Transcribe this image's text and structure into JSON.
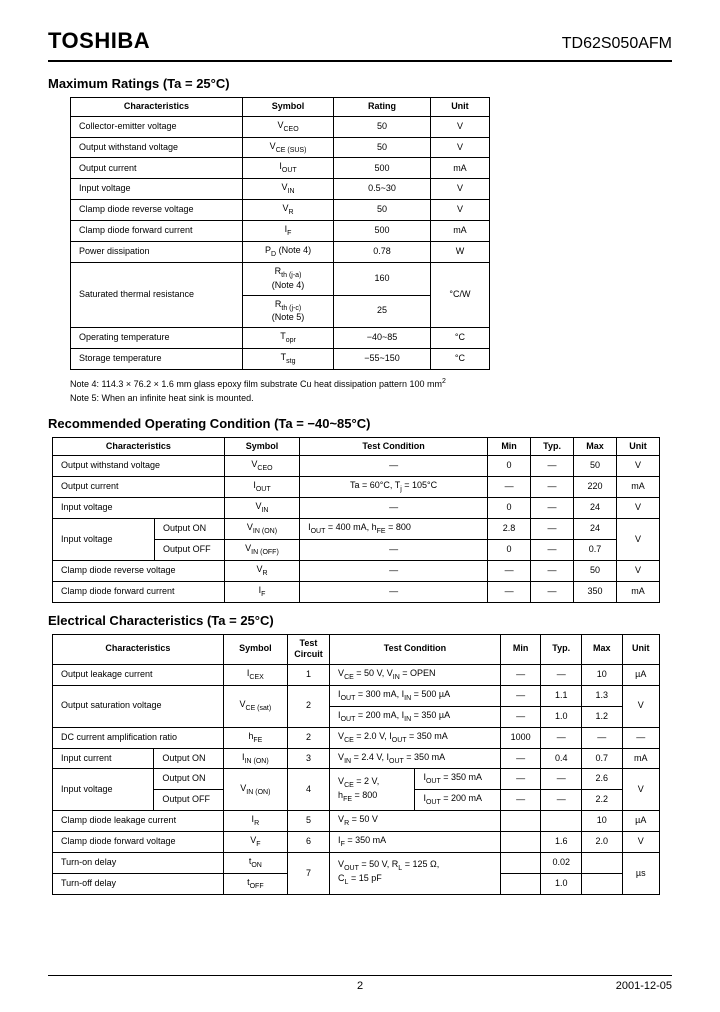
{
  "header": {
    "brand": "TOSHIBA",
    "part": "TD62S050AFM"
  },
  "footer": {
    "page": "2",
    "date": "2001-12-05"
  },
  "sec1": {
    "title": "Maximum Ratings (Ta = 25°C)",
    "headers": [
      "Characteristics",
      "Symbol",
      "Rating",
      "Unit"
    ],
    "rows": [
      {
        "c": "Collector-emitter voltage",
        "s": "V<CEO>",
        "r": "50",
        "u": "V"
      },
      {
        "c": "Output withstand voltage",
        "s": "V<CE (SUS)>",
        "r": "50",
        "u": "V"
      },
      {
        "c": "Output current",
        "s": "I<OUT>",
        "r": "500",
        "u": "mA"
      },
      {
        "c": "Input voltage",
        "s": "V<IN>",
        "r": "0.5~30",
        "u": "V"
      },
      {
        "c": "Clamp diode reverse voltage",
        "s": "V<R>",
        "r": "50",
        "u": "V"
      },
      {
        "c": "Clamp diode forward current",
        "s": "I<F>",
        "r": "500",
        "u": "mA"
      },
      {
        "c": "Power dissipation",
        "s": "P<D> (Note 4)",
        "r": "0.78",
        "u": "W"
      }
    ],
    "sat": {
      "c": "Saturated thermal resistance",
      "s1": "R<th (j-a)>\n(Note 4)",
      "r1": "160",
      "s2": "R<th (j-c)>\n(Note 5)",
      "r2": "25",
      "u": "°C/W"
    },
    "rows2": [
      {
        "c": "Operating temperature",
        "s": "T<opr>",
        "r": "−40~85",
        "u": "°C"
      },
      {
        "c": "Storage temperature",
        "s": "T<stg>",
        "r": "−55~150",
        "u": "°C"
      }
    ],
    "note4": "Note 4:   114.3 × 76.2 × 1.6 mm glass epoxy film substrate   Cu heat dissipation pattern 100 mm",
    "note4sup": "2",
    "note5": "Note 5:   When an infinite heat sink is mounted."
  },
  "sec2": {
    "title": "Recommended Operating Condition (Ta = −40~85°C)",
    "headers": [
      "Characteristics",
      "Symbol",
      "Test Condition",
      "Min",
      "Typ.",
      "Max",
      "Unit"
    ],
    "rows": [
      {
        "c": "Output withstand voltage",
        "s": "V<CEO>",
        "tc": "—",
        "min": "0",
        "typ": "—",
        "max": "50",
        "u": "V"
      },
      {
        "c": "Output current",
        "s": "I<OUT>",
        "tc": "Ta = 60°C, T<j> = 105°C",
        "min": "—",
        "typ": "—",
        "max": "220",
        "u": "mA"
      },
      {
        "c": "Input voltage",
        "s": "V<IN>",
        "tc": "—",
        "min": "0",
        "typ": "—",
        "max": "24",
        "u": "V"
      }
    ],
    "inv": {
      "c": "Input voltage",
      "on_l": "Output ON",
      "on_s": "V<IN (ON)>",
      "on_tc": "I<OUT> = 400 mA, h<FE> = 800",
      "on_min": "2.8",
      "on_typ": "—",
      "on_max": "24",
      "off_l": "Output OFF",
      "off_s": "V<IN (OFF)>",
      "off_tc": "—",
      "off_min": "0",
      "off_typ": "—",
      "off_max": "0.7",
      "u": "V"
    },
    "rows2": [
      {
        "c": "Clamp diode reverse voltage",
        "s": "V<R>",
        "tc": "—",
        "min": "—",
        "typ": "—",
        "max": "50",
        "u": "V"
      },
      {
        "c": "Clamp diode forward current",
        "s": "I<F>",
        "tc": "—",
        "min": "—",
        "typ": "—",
        "max": "350",
        "u": "mA"
      }
    ]
  },
  "sec3": {
    "title": "Electrical Characteristics (Ta = 25°C)",
    "headers": [
      "Characteristics",
      "Symbol",
      "Test Circuit",
      "Test Condition",
      "Min",
      "Typ.",
      "Max",
      "Unit"
    ],
    "r_leak": {
      "c": "Output leakage current",
      "s": "I<CEX>",
      "ckt": "1",
      "tc": "V<CE> = 50 V, V<IN> = OPEN",
      "min": "—",
      "typ": "—",
      "max": "10",
      "u": "µA"
    },
    "r_sat": {
      "c": "Output saturation voltage",
      "s": "V<CE (sat)>",
      "ckt": "2",
      "tc1": "I<OUT> = 300 mA, I<IN> = 500 µA",
      "min1": "—",
      "typ1": "1.1",
      "max1": "1.3",
      "tc2": "I<OUT> = 200 mA, I<IN> = 350 µA",
      "min2": "—",
      "typ2": "1.0",
      "max2": "1.2",
      "u": "V"
    },
    "r_hfe": {
      "c": "DC current amplification ratio",
      "s": "h<FE>",
      "ckt": "2",
      "tc": "V<CE> = 2.0 V, I<OUT> = 350 mA",
      "min": "1000",
      "typ": "—",
      "max": "—",
      "u": "—"
    },
    "r_iin": {
      "c": "Input current",
      "c2": "Output ON",
      "s": "I<IN (ON)>",
      "ckt": "3",
      "tc": "V<IN> = 2.4 V, I<OUT> = 350 mA",
      "min": "—",
      "typ": "0.4",
      "max": "0.7",
      "u": "mA"
    },
    "r_vin": {
      "c": "Input voltage",
      "on_l": "Output ON",
      "off_l": "Output OFF",
      "s": "V<IN (ON)>",
      "ckt": "4",
      "tc_pre": "V<CE> = 2 V,\nh<FE> = 800",
      "tc1": "I<OUT> = 350 mA",
      "min1": "—",
      "typ1": "—",
      "max1": "2.6",
      "tc2": "I<OUT> = 200 mA",
      "min2": "—",
      "typ2": "—",
      "max2": "2.2",
      "u": "V"
    },
    "r_ir": {
      "c": "Clamp diode leakage current",
      "s": "I<R>",
      "ckt": "5",
      "tc": "V<R> = 50 V",
      "min": "",
      "typ": "",
      "max": "10",
      "u": "µA"
    },
    "r_vf": {
      "c": "Clamp diode forward voltage",
      "s": "V<F>",
      "ckt": "6",
      "tc": "I<F> = 350 mA",
      "min": "",
      "typ": "1.6",
      "max": "2.0",
      "u": "V"
    },
    "r_delay": {
      "on_c": "Turn-on delay",
      "on_s": "t<ON>",
      "off_c": "Turn-off delay",
      "off_s": "t<OFF>",
      "ckt": "7",
      "tc": "V<OUT> = 50 V, R<L> = 125 Ω,\nC<L> = 15 pF",
      "on_typ": "0.02",
      "off_typ": "1.0",
      "u": "µs"
    }
  }
}
